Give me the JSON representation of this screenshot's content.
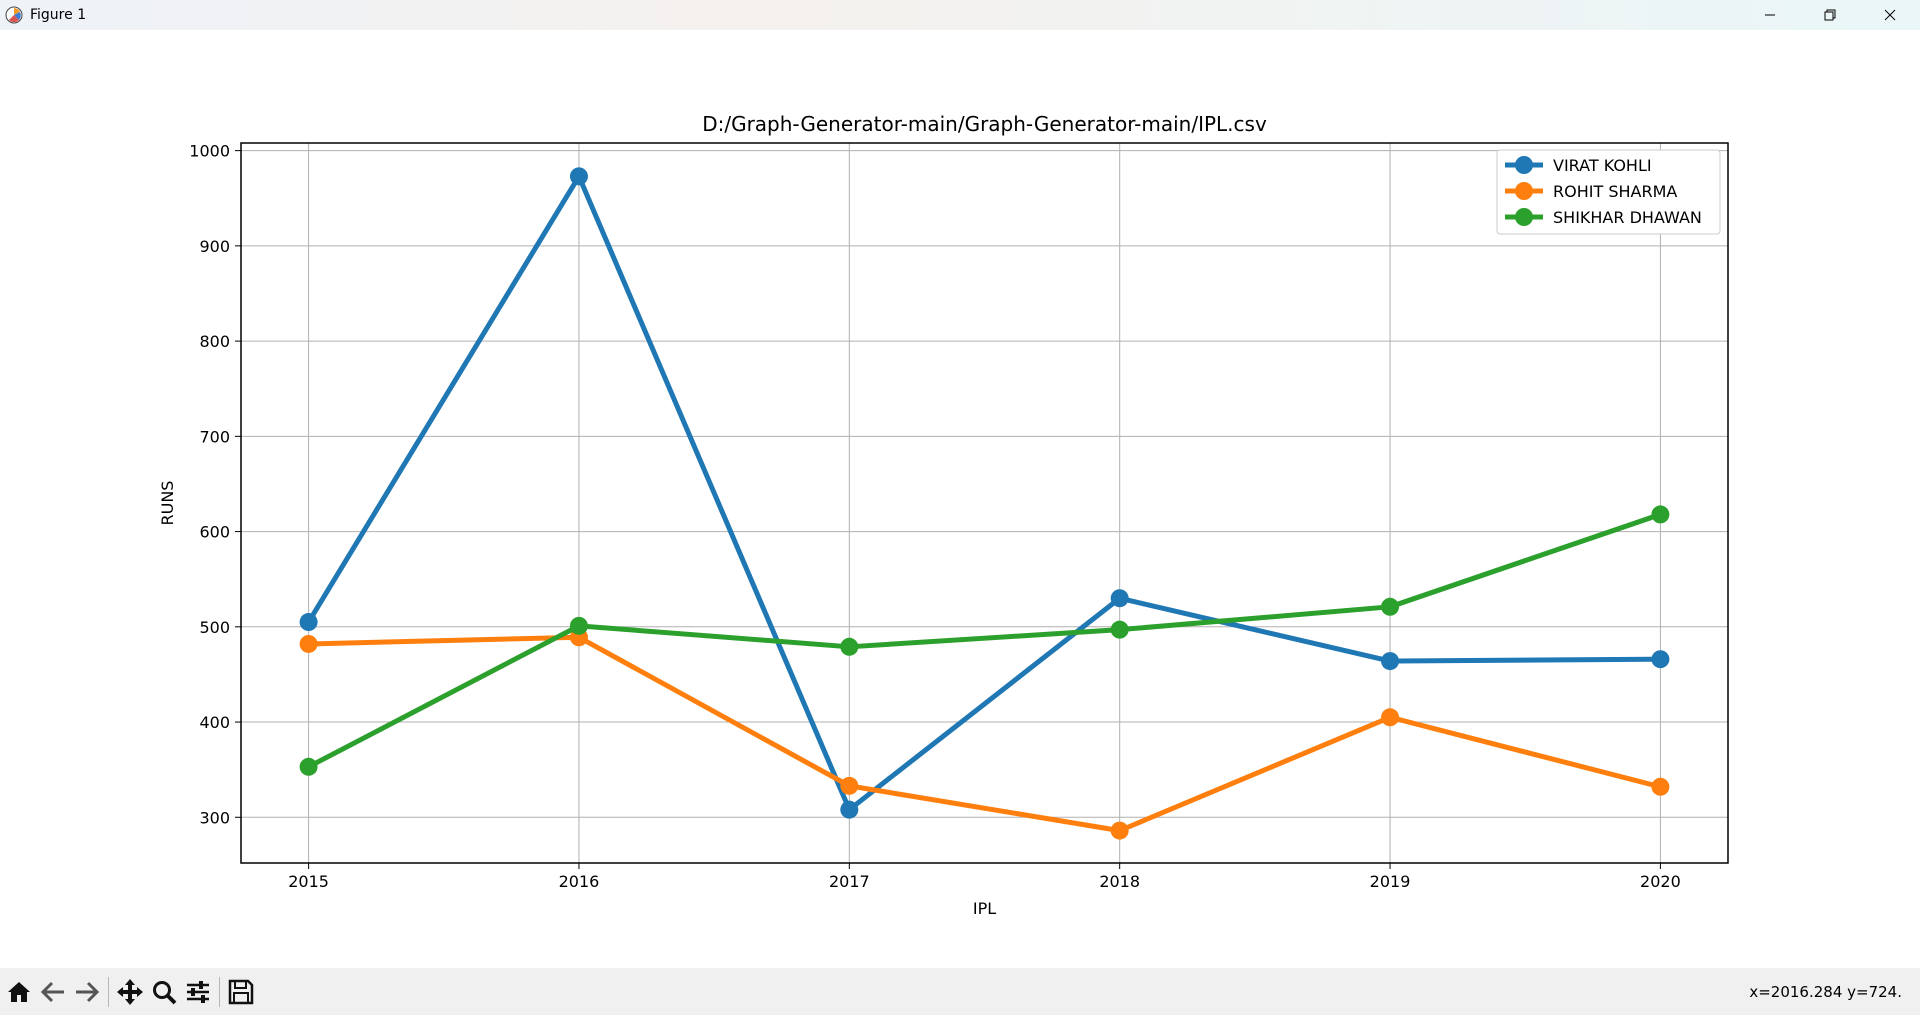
{
  "window": {
    "title": "Figure 1"
  },
  "toolbar": {
    "buttons": [
      {
        "icon": "home-icon",
        "name": "home-button"
      },
      {
        "icon": "back-arrow-icon",
        "name": "back-button"
      },
      {
        "icon": "forward-arrow-icon",
        "name": "forward-button"
      },
      {
        "icon": "pan-icon",
        "name": "pan-button"
      },
      {
        "icon": "zoom-icon",
        "name": "zoom-button"
      },
      {
        "icon": "configure-subplots-icon",
        "name": "configure-subplots-button"
      },
      {
        "icon": "save-icon",
        "name": "save-button"
      }
    ],
    "coords": "x=2016.284 y=724."
  },
  "chart_data": {
    "type": "line",
    "title": "D:/Graph-Generator-main/Graph-Generator-main/IPL.csv",
    "xlabel": "IPL",
    "ylabel": "RUNS",
    "x": [
      2015,
      2016,
      2017,
      2018,
      2019,
      2020
    ],
    "x_ticks": [
      "2015",
      "2016",
      "2017",
      "2018",
      "2019",
      "2020"
    ],
    "y_ticks": [
      300,
      400,
      500,
      600,
      700,
      800,
      900,
      1000
    ],
    "ylim": [
      252,
      1008
    ],
    "xlim": [
      2014.75,
      2020.25
    ],
    "grid": true,
    "legend_position": "top-right",
    "series": [
      {
        "name": "VIRAT KOHLI",
        "color": "#1f77b4",
        "values": [
          505,
          973,
          308,
          530,
          464,
          466
        ]
      },
      {
        "name": "ROHIT SHARMA",
        "color": "#ff7f0e",
        "values": [
          482,
          489,
          333,
          286,
          405,
          332
        ]
      },
      {
        "name": "SHIKHAR DHAWAN",
        "color": "#2ca02c",
        "values": [
          353,
          501,
          479,
          497,
          521,
          618
        ]
      }
    ]
  }
}
